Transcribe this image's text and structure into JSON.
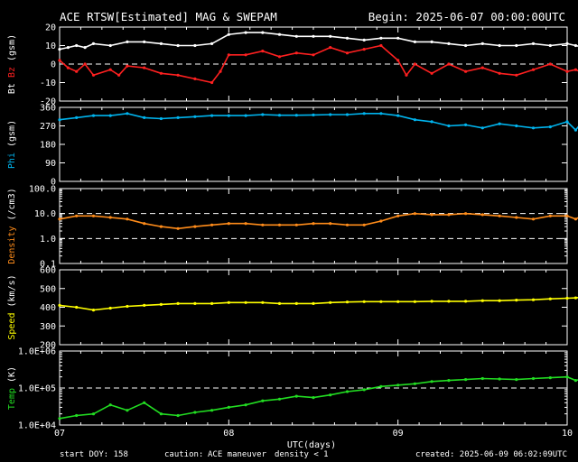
{
  "header": {
    "title": "ACE RTSW[Estimated] MAG & SWEPAM",
    "begin": "Begin: 2025-06-07 00:00:00UTC"
  },
  "footer": {
    "start_doy": "start DOY: 158",
    "caution_label": "caution:",
    "maneuver": "ACE maneuver",
    "density_note": "density < 1",
    "created": "created: 2025-06-09 06:02:09UTC"
  },
  "xaxis": {
    "label": "UTC(days)",
    "ticks": [
      "07",
      "08",
      "09",
      "10"
    ],
    "range": [
      0,
      3
    ],
    "tick_values": [
      0,
      1,
      2,
      3
    ]
  },
  "colors": {
    "bt": "#ffffff",
    "bz": "#ff2020",
    "phi": "#00b4ee",
    "density": "#ff8c1a",
    "speed": "#ffff00",
    "temp": "#22dd22",
    "axes": "#ffffff",
    "maneuver": "#ffff00",
    "density_note": "#ff8c1a"
  },
  "panels": [
    {
      "key": "mag",
      "ylabel_parts": [
        {
          "text": "Bt",
          "color": "#ffffff"
        },
        {
          "text": "Bz",
          "color": "#ff2020"
        },
        {
          "text": "(gsm)",
          "color": "#ffffff"
        }
      ],
      "ylim": [
        -20,
        20
      ],
      "ticks": [
        20,
        10,
        0,
        -10,
        -20
      ],
      "tick_labels": [
        "20",
        "10",
        "0",
        "-10",
        "-20"
      ],
      "dashed": [
        0
      ]
    },
    {
      "key": "phi",
      "ylabel_parts": [
        {
          "text": "Phi",
          "color": "#00b4ee"
        },
        {
          "text": "(gsm)",
          "color": "#ffffff"
        }
      ],
      "ylim": [
        0,
        360
      ],
      "ticks": [
        360,
        270,
        180,
        90,
        0
      ],
      "tick_labels": [
        "360",
        "270",
        "180",
        "90",
        "0"
      ],
      "dashed": []
    },
    {
      "key": "density",
      "ylabel_parts": [
        {
          "text": "Density",
          "color": "#ff8c1a"
        },
        {
          "text": "(/cm3)",
          "color": "#ffffff"
        }
      ],
      "log": true,
      "ylim": [
        0.1,
        100
      ],
      "ticks": [
        100,
        10,
        1,
        0.1
      ],
      "tick_labels": [
        "100.0",
        "10.0",
        "1.0",
        "0.1"
      ],
      "dashed": [
        10,
        1
      ]
    },
    {
      "key": "speed",
      "ylabel_parts": [
        {
          "text": "Speed",
          "color": "#ffff00"
        },
        {
          "text": "(km/s)",
          "color": "#ffffff"
        }
      ],
      "ylim": [
        200,
        600
      ],
      "ticks": [
        600,
        500,
        400,
        300,
        200
      ],
      "tick_labels": [
        "600",
        "500",
        "400",
        "300",
        "200"
      ],
      "dashed": []
    },
    {
      "key": "temp",
      "ylabel_parts": [
        {
          "text": "Temp",
          "color": "#22dd22"
        },
        {
          "text": "(K)",
          "color": "#ffffff"
        }
      ],
      "log": true,
      "ylim": [
        10000,
        1000000
      ],
      "ticks": [
        1000000,
        100000,
        10000
      ],
      "tick_labels": [
        "1.0E+06",
        "1.0E+05",
        "1.0E+04"
      ],
      "dashed": [
        100000
      ]
    }
  ],
  "chart_data": {
    "type": "line",
    "x_units": "days since 2025-06-07 00:00 UTC",
    "series": [
      {
        "name": "Bt",
        "panel": "mag",
        "x": [
          0,
          0.05,
          0.1,
          0.15,
          0.2,
          0.3,
          0.4,
          0.5,
          0.6,
          0.7,
          0.8,
          0.9,
          1.0,
          1.1,
          1.2,
          1.3,
          1.4,
          1.5,
          1.6,
          1.7,
          1.8,
          1.9,
          2.0,
          2.1,
          2.2,
          2.3,
          2.4,
          2.5,
          2.6,
          2.7,
          2.8,
          2.9,
          3.0,
          3.05,
          3.1,
          3.15,
          3.2,
          3.25
        ],
        "values": [
          8,
          9,
          10,
          9,
          11,
          10,
          12,
          12,
          11,
          10,
          10,
          11,
          16,
          17,
          17,
          16,
          15,
          15,
          15,
          14,
          13,
          14,
          14,
          12,
          12,
          11,
          10,
          11,
          10,
          10,
          11,
          10,
          11,
          10,
          9,
          9,
          9,
          9
        ]
      },
      {
        "name": "Bz",
        "panel": "mag",
        "x": [
          0,
          0.05,
          0.1,
          0.15,
          0.2,
          0.3,
          0.35,
          0.4,
          0.5,
          0.6,
          0.7,
          0.8,
          0.9,
          0.95,
          1.0,
          1.1,
          1.2,
          1.3,
          1.4,
          1.5,
          1.6,
          1.7,
          1.8,
          1.9,
          2.0,
          2.05,
          2.1,
          2.2,
          2.3,
          2.4,
          2.5,
          2.6,
          2.7,
          2.8,
          2.9,
          3.0,
          3.05,
          3.1,
          3.15,
          3.2,
          3.25
        ],
        "values": [
          2,
          -2,
          -4,
          0,
          -6,
          -3,
          -6,
          -1,
          -2,
          -5,
          -6,
          -8,
          -10,
          -4,
          5,
          5,
          7,
          4,
          6,
          5,
          9,
          6,
          8,
          10,
          2,
          -6,
          0,
          -5,
          0,
          -4,
          -2,
          -5,
          -6,
          -3,
          0,
          -4,
          -3,
          -5,
          -3,
          0,
          -2
        ]
      },
      {
        "name": "Phi",
        "panel": "phi",
        "x": [
          0,
          0.1,
          0.2,
          0.3,
          0.4,
          0.5,
          0.6,
          0.7,
          0.8,
          0.9,
          1.0,
          1.1,
          1.2,
          1.3,
          1.4,
          1.5,
          1.6,
          1.7,
          1.8,
          1.9,
          2.0,
          2.1,
          2.2,
          2.3,
          2.4,
          2.5,
          2.6,
          2.7,
          2.8,
          2.9,
          3.0,
          3.05,
          3.1,
          3.15,
          3.2,
          3.25
        ],
        "values": [
          300,
          310,
          320,
          320,
          330,
          310,
          305,
          310,
          315,
          320,
          320,
          320,
          325,
          322,
          322,
          323,
          325,
          325,
          330,
          330,
          320,
          300,
          290,
          270,
          275,
          260,
          280,
          270,
          260,
          265,
          290,
          250,
          300,
          270,
          250,
          300
        ]
      },
      {
        "name": "Density",
        "panel": "density",
        "x": [
          0,
          0.1,
          0.2,
          0.3,
          0.4,
          0.5,
          0.6,
          0.7,
          0.8,
          0.9,
          1.0,
          1.1,
          1.2,
          1.3,
          1.4,
          1.5,
          1.6,
          1.7,
          1.8,
          1.9,
          2.0,
          2.1,
          2.2,
          2.3,
          2.4,
          2.5,
          2.6,
          2.7,
          2.8,
          2.9,
          3.0,
          3.05,
          3.1,
          3.15,
          3.2,
          3.25
        ],
        "values": [
          6,
          8,
          8,
          7,
          6,
          4,
          3,
          2.5,
          3,
          3.5,
          4,
          4,
          3.5,
          3.5,
          3.5,
          4,
          4,
          3.5,
          3.5,
          5,
          8,
          10,
          9,
          9,
          10,
          9,
          8,
          7,
          6,
          8,
          8,
          6,
          9,
          8,
          8,
          7
        ]
      },
      {
        "name": "Speed",
        "panel": "speed",
        "x": [
          0,
          0.1,
          0.2,
          0.3,
          0.4,
          0.5,
          0.6,
          0.7,
          0.8,
          0.9,
          1.0,
          1.1,
          1.2,
          1.3,
          1.4,
          1.5,
          1.6,
          1.7,
          1.8,
          1.9,
          2.0,
          2.1,
          2.2,
          2.3,
          2.4,
          2.5,
          2.6,
          2.7,
          2.8,
          2.9,
          3.0,
          3.05,
          3.1,
          3.15,
          3.2,
          3.25
        ],
        "values": [
          410,
          400,
          385,
          395,
          405,
          410,
          415,
          420,
          420,
          420,
          425,
          425,
          425,
          420,
          420,
          420,
          425,
          428,
          430,
          430,
          430,
          430,
          432,
          432,
          432,
          435,
          435,
          438,
          440,
          445,
          448,
          450,
          455,
          465,
          475,
          480
        ]
      },
      {
        "name": "Temp",
        "panel": "temp",
        "x": [
          0,
          0.1,
          0.2,
          0.3,
          0.4,
          0.5,
          0.6,
          0.7,
          0.8,
          0.9,
          1.0,
          1.1,
          1.2,
          1.3,
          1.4,
          1.5,
          1.6,
          1.7,
          1.8,
          1.9,
          2.0,
          2.1,
          2.2,
          2.3,
          2.4,
          2.5,
          2.6,
          2.7,
          2.8,
          2.9,
          3.0,
          3.05,
          3.1,
          3.15,
          3.2,
          3.25
        ],
        "values": [
          15000,
          18000,
          20000,
          35000,
          25000,
          40000,
          20000,
          18000,
          22000,
          25000,
          30000,
          35000,
          45000,
          50000,
          60000,
          55000,
          65000,
          80000,
          90000,
          110000,
          120000,
          130000,
          150000,
          160000,
          170000,
          180000,
          175000,
          170000,
          180000,
          190000,
          200000,
          160000,
          180000,
          140000,
          150000,
          180000
        ]
      }
    ]
  }
}
